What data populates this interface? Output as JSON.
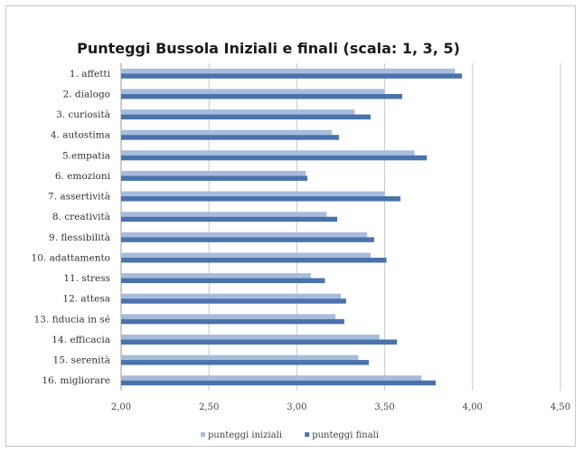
{
  "chart_data": {
    "type": "bar",
    "orientation": "horizontal",
    "title": "Punteggi Bussola Iniziali e finali (scala: 1, 3, 5)",
    "categories": [
      "1. affetti",
      "2. dialogo",
      "3. curiosità",
      "4. autostima",
      "5.empatia",
      "6. emozioni",
      "7. assertività",
      "8. creatività",
      "9. flessibilità",
      "10. adattamento",
      "11. stress",
      "12. attesa",
      "13. fiducia in sé",
      "14. efficacia",
      "15. serenità",
      "16. migliorare"
    ],
    "series": [
      {
        "name": "punteggi iniziali",
        "color": "#a7bcdc",
        "values": [
          3.9,
          3.5,
          3.33,
          3.2,
          3.67,
          3.05,
          3.5,
          3.17,
          3.4,
          3.42,
          3.08,
          3.25,
          3.22,
          3.47,
          3.35,
          3.71
        ]
      },
      {
        "name": "punteggi finali",
        "color": "#4a72ab",
        "values": [
          3.94,
          3.6,
          3.42,
          3.24,
          3.74,
          3.06,
          3.59,
          3.23,
          3.44,
          3.51,
          3.16,
          3.28,
          3.27,
          3.57,
          3.41,
          3.79
        ]
      }
    ],
    "xlim": [
      2.0,
      4.5
    ],
    "xticks": [
      "2,00",
      "2,50",
      "3,00",
      "3,50",
      "4,00",
      "4,50"
    ],
    "xtick_values": [
      2.0,
      2.5,
      3.0,
      3.5,
      4.0,
      4.5
    ],
    "grid": "vertical",
    "legend_position": "bottom"
  }
}
